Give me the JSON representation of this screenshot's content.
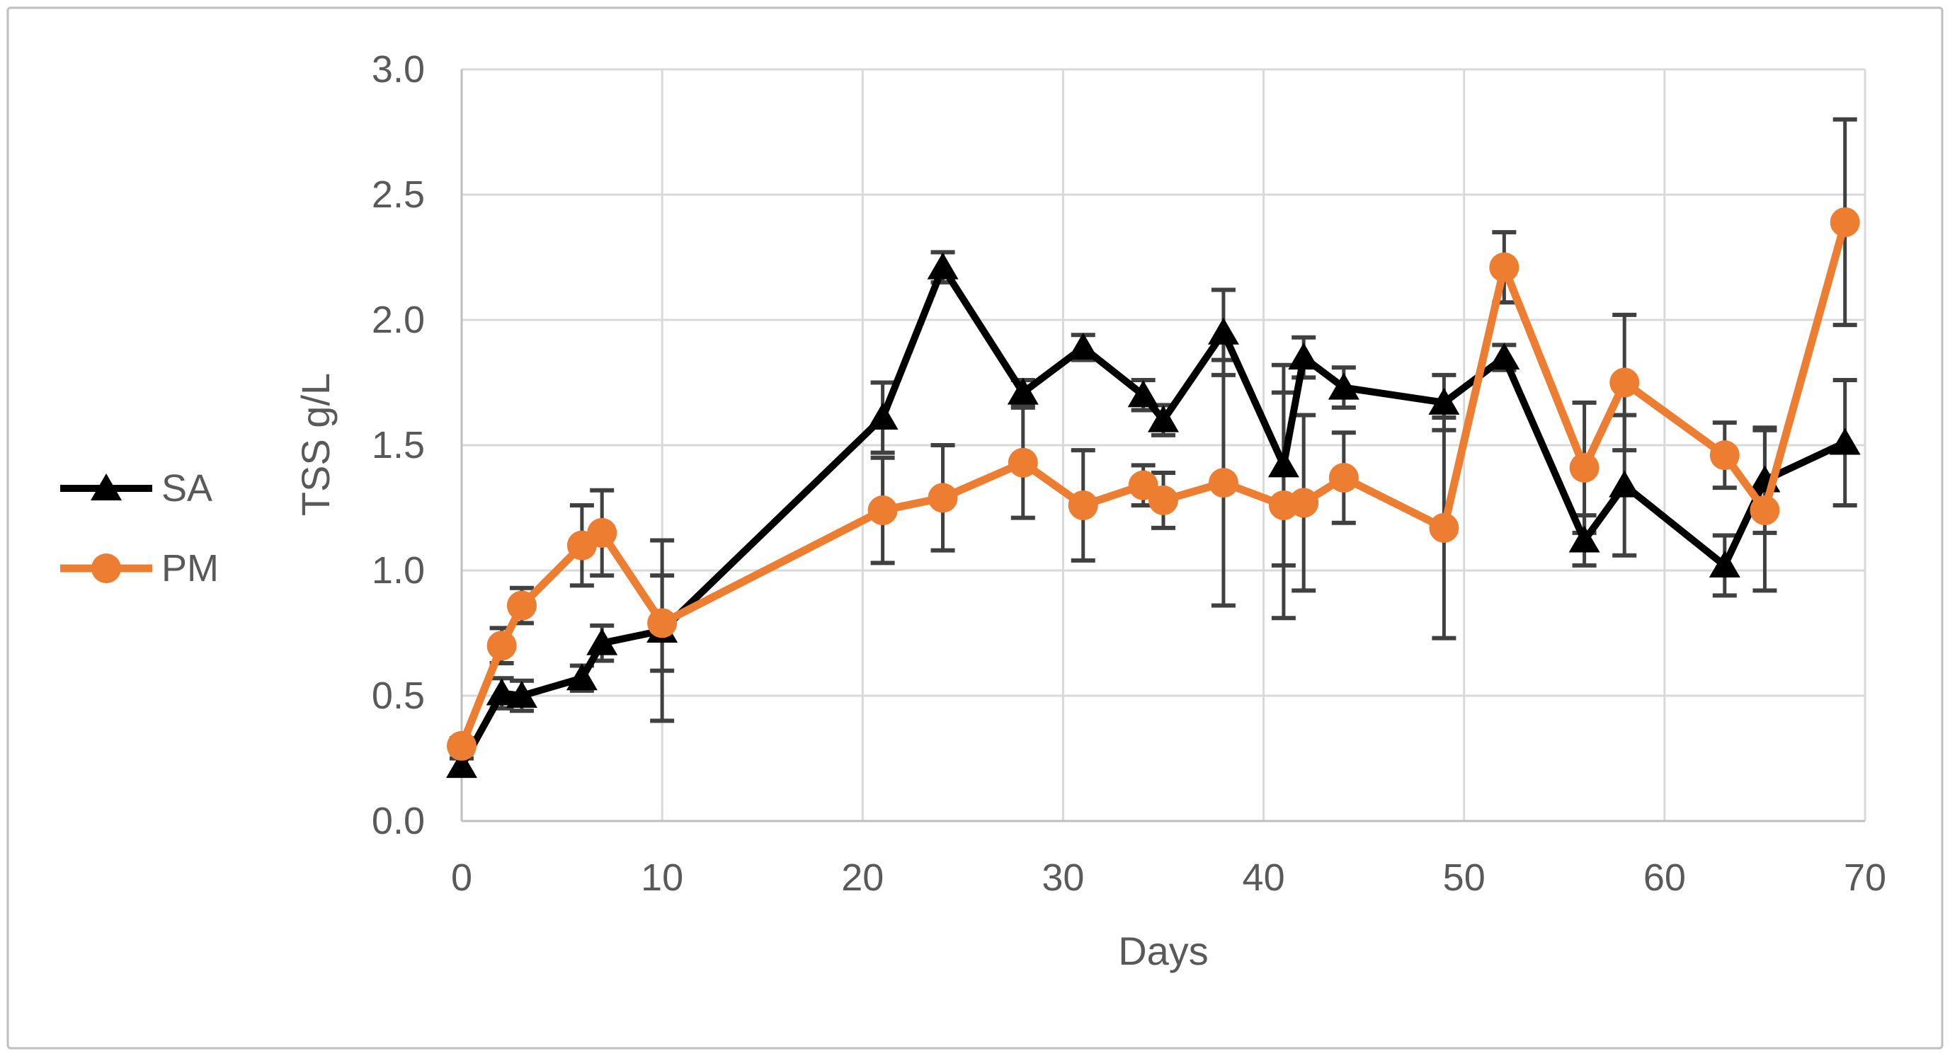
{
  "figure": {
    "background": "#FFFFFF",
    "border_color": "#BFBFBF"
  },
  "chart_data": {
    "type": "line",
    "title": "",
    "xlabel": "Days",
    "ylabel": "TSS g/L",
    "xlim": [
      0,
      70
    ],
    "ylim": [
      0.0,
      3.0
    ],
    "x_ticks": [
      0,
      10,
      20,
      30,
      40,
      50,
      60,
      70
    ],
    "y_ticks": [
      0.0,
      0.5,
      1.0,
      1.5,
      2.0,
      2.5,
      3.0
    ],
    "grid": true,
    "legend_position": "left",
    "x": [
      0,
      2,
      3,
      6,
      7,
      10,
      21,
      24,
      28,
      31,
      34,
      35,
      38,
      41,
      42,
      44,
      49,
      52,
      56,
      58,
      63,
      65,
      69
    ],
    "series": [
      {
        "name": "SA",
        "color": "#000000",
        "marker": "triangle",
        "values": [
          0.22,
          0.51,
          0.5,
          0.57,
          0.71,
          0.76,
          1.61,
          2.21,
          1.71,
          1.89,
          1.7,
          1.6,
          1.95,
          1.42,
          1.85,
          1.73,
          1.67,
          1.85,
          1.12,
          1.34,
          1.02,
          1.36,
          1.51
        ],
        "errors": [
          0.03,
          0.06,
          0.06,
          0.05,
          0.07,
          0.36,
          0.14,
          0.06,
          0.05,
          0.05,
          0.06,
          0.06,
          0.17,
          0.4,
          0.08,
          0.08,
          0.11,
          0.05,
          0.1,
          0.28,
          0.12,
          0.21,
          0.25
        ]
      },
      {
        "name": "PM",
        "color": "#ED7D31",
        "marker": "circle",
        "values": [
          0.3,
          0.7,
          0.86,
          1.1,
          1.15,
          0.79,
          1.24,
          1.29,
          1.43,
          1.26,
          1.34,
          1.28,
          1.35,
          1.26,
          1.27,
          1.37,
          1.17,
          2.21,
          1.41,
          1.75,
          1.46,
          1.24,
          2.39
        ],
        "errors": [
          0.03,
          0.07,
          0.07,
          0.16,
          0.17,
          0.19,
          0.21,
          0.21,
          0.22,
          0.22,
          0.08,
          0.11,
          0.49,
          0.45,
          0.35,
          0.18,
          0.44,
          0.14,
          0.26,
          0.27,
          0.13,
          0.32,
          0.41
        ]
      }
    ],
    "colors": {
      "gridline": "#D9D9D9",
      "axis_line": "#BFBFBF",
      "tick_text": "#595959",
      "error_bar": "#404040"
    }
  }
}
